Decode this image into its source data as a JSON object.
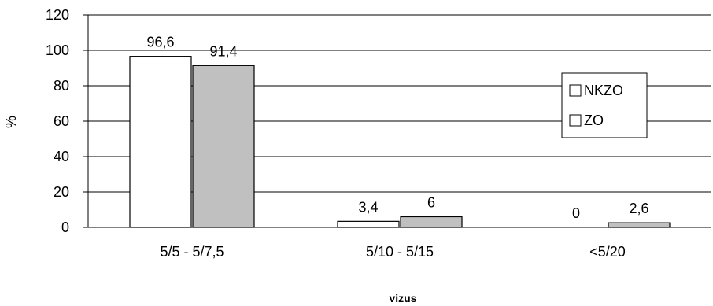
{
  "chart_data": {
    "type": "bar",
    "categories": [
      "5/5 - 5/7,5",
      "5/10 - 5/15",
      "<5/20"
    ],
    "series": [
      {
        "name": "NKZO",
        "values": [
          96.6,
          3.4,
          0
        ],
        "labels": [
          "96,6",
          "3,4",
          "0"
        ],
        "color": "#ffffff"
      },
      {
        "name": "ZO",
        "values": [
          91.4,
          6,
          2.6
        ],
        "labels": [
          "91,4",
          "6",
          "2,6"
        ],
        "color": "#c0c0c0"
      }
    ],
    "ylabel": "%",
    "xlabel": "vizus",
    "ylim": [
      0,
      120
    ],
    "yticks": [
      "0",
      "20",
      "40",
      "60",
      "80",
      "100",
      "120"
    ],
    "grid": true,
    "legend_position": "right"
  }
}
